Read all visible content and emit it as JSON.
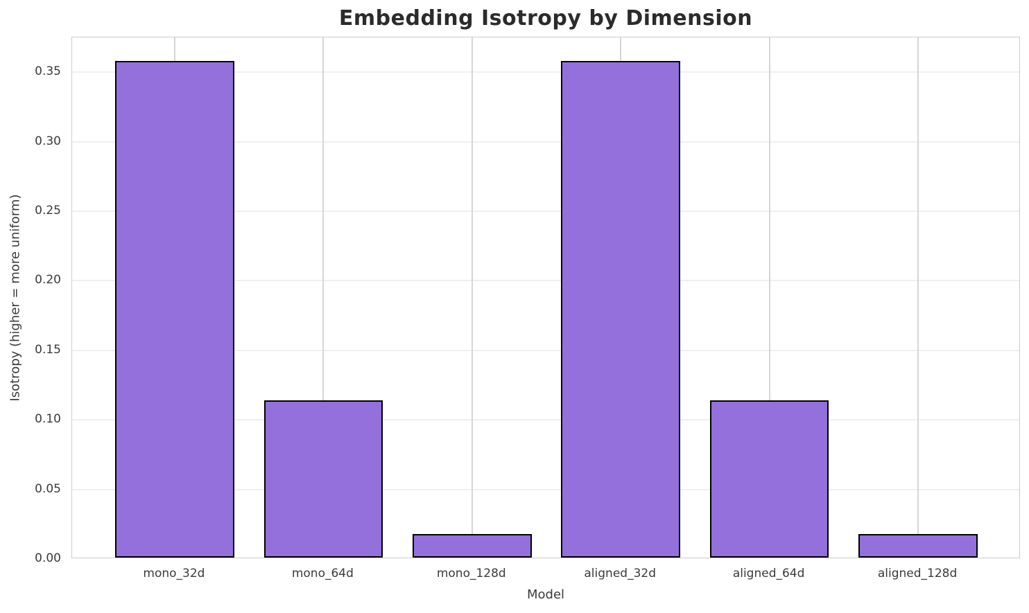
{
  "chart_data": {
    "type": "bar",
    "title": "Embedding Isotropy by Dimension",
    "xlabel": "Model",
    "ylabel": "Isotropy (higher = more uniform)",
    "categories": [
      "mono_32d",
      "mono_64d",
      "mono_128d",
      "aligned_32d",
      "aligned_64d",
      "aligned_128d"
    ],
    "values": [
      0.357,
      0.113,
      0.017,
      0.357,
      0.113,
      0.017
    ],
    "ylim": [
      0,
      0.375
    ],
    "xlim": [
      -0.69,
      5.69
    ],
    "yticks": [
      0.0,
      0.05,
      0.1,
      0.15,
      0.2,
      0.25,
      0.3,
      0.35
    ],
    "ytick_labels": [
      "0.00",
      "0.05",
      "0.10",
      "0.15",
      "0.20",
      "0.25",
      "0.30",
      "0.35"
    ],
    "grid": true,
    "legend": "none",
    "bar_width_frac": 0.8,
    "colors": {
      "bar_fill": "#9370DB",
      "bar_edge": "#000000",
      "hgrid": "#efefef",
      "vgrid": "#d5d5d5",
      "spine": "#cccccc",
      "tick_text": "#3a3a3a",
      "title_text": "#2b2b2b",
      "background": "#ffffff"
    }
  }
}
